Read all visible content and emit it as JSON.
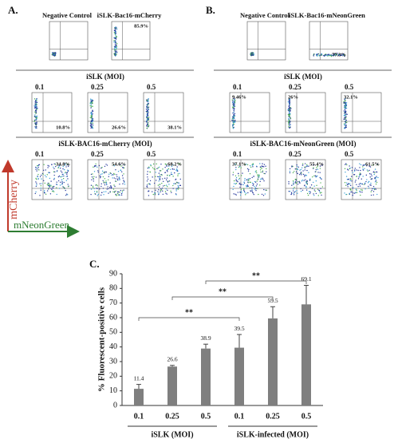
{
  "panels": [
    {
      "label": "A.",
      "top": [
        {
          "title": "Negative Control"
        },
        {
          "title": "iSLK-Bac16-mCherry",
          "percent": "85.9%"
        }
      ],
      "rows": [
        {
          "header": "iSLK (MOI)",
          "plots": [
            {
              "moi": "0.1",
              "percent": "10.8%"
            },
            {
              "moi": "0.25",
              "percent": "26.6%"
            },
            {
              "moi": "0.5",
              "percent": "38.1%"
            }
          ]
        },
        {
          "header": "iSLK-BAC16-mCherry (MOI)",
          "plots": [
            {
              "moi": "0.1",
              "percent": "34.8%"
            },
            {
              "moi": "0.25",
              "percent": "54.6%"
            },
            {
              "moi": "0.5",
              "percent": "68.2%"
            }
          ]
        }
      ]
    },
    {
      "label": "B.",
      "top": [
        {
          "title": "Negative Control"
        },
        {
          "title": "iSLK-Bac16-mNeonGreen",
          "percent": "77.3%"
        }
      ],
      "rows": [
        {
          "header": "iSLK (MOI)",
          "plots": [
            {
              "moi": "0.1",
              "percent": "9.46%"
            },
            {
              "moi": "0.25",
              "percent": "26%"
            },
            {
              "moi": "0.5",
              "percent": "32.1%"
            }
          ]
        },
        {
          "header": "iSLK-BAC16-mNeonGreen (MOI)",
          "plots": [
            {
              "moi": "0.1",
              "percent": "37.1%"
            },
            {
              "moi": "0.25",
              "percent": "55.4%"
            },
            {
              "moi": "0.5",
              "percent": "61.5%"
            }
          ]
        }
      ]
    }
  ],
  "axis_legend": {
    "y": "mCherry",
    "x": "mNeonGreen"
  },
  "chart_data": {
    "type": "bar",
    "label": "C.",
    "ylabel": "% Fluorescent-positive cells",
    "categories": [
      "0.1",
      "0.25",
      "0.5",
      "0.1",
      "0.25",
      "0.5"
    ],
    "groups": [
      "iSLK (MOI)",
      "iSLK-infected (MOI)"
    ],
    "values": [
      11.4,
      26.6,
      38.9,
      39.5,
      59.5,
      69.1
    ],
    "errors": [
      3,
      0.8,
      3,
      9,
      8,
      13
    ],
    "color": "#7f7f7f",
    "ylim": [
      0,
      90
    ],
    "yticks": [
      0,
      10,
      20,
      30,
      40,
      50,
      60,
      70,
      80,
      90
    ],
    "significance": [
      "**",
      "**",
      "**"
    ]
  }
}
